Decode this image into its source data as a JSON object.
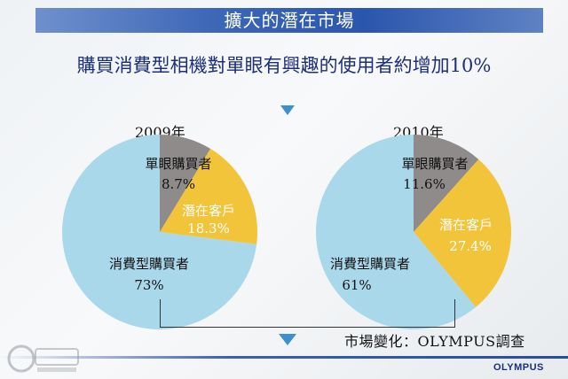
{
  "header": {
    "title": "擴大的潛在市場",
    "subtitle": "購買消費型相機對單眼有興趣的使用者約增加10%"
  },
  "colors": {
    "banner": "#3d67b7",
    "subtitle_text": "#1d2f77",
    "arrow": "#3f8ed1",
    "consumer": "#a9d8ea",
    "potential": "#f2c43a",
    "dslr": "#8f8b8a",
    "source_text": "#111111",
    "logo": "#1a2f7a"
  },
  "chart_data": [
    {
      "type": "pie",
      "title": "2009年",
      "slices": [
        {
          "name": "單眼購買者",
          "value": 8.7,
          "label": "8.7%",
          "color": "#8f8b8a"
        },
        {
          "name": "潛在客戶",
          "value": 18.3,
          "label": "18.3%",
          "color": "#f2c43a"
        },
        {
          "name": "消費型購買者",
          "value": 73,
          "label": "73%",
          "color": "#a9d8ea"
        }
      ]
    },
    {
      "type": "pie",
      "title": "2010年",
      "slices": [
        {
          "name": "單眼購買者",
          "value": 11.6,
          "label": "11.6%",
          "color": "#8f8b8a"
        },
        {
          "name": "潛在客戶",
          "value": 27.4,
          "label": "27.4%",
          "color": "#f2c43a"
        },
        {
          "name": "消費型購買者",
          "value": 61,
          "label": "61%",
          "color": "#a9d8ea"
        }
      ]
    }
  ],
  "source": "市場變化：OLYMPUS調查",
  "logo": "OLYMPUS",
  "watermark": {
    "icon": "site-watermark-icon"
  }
}
